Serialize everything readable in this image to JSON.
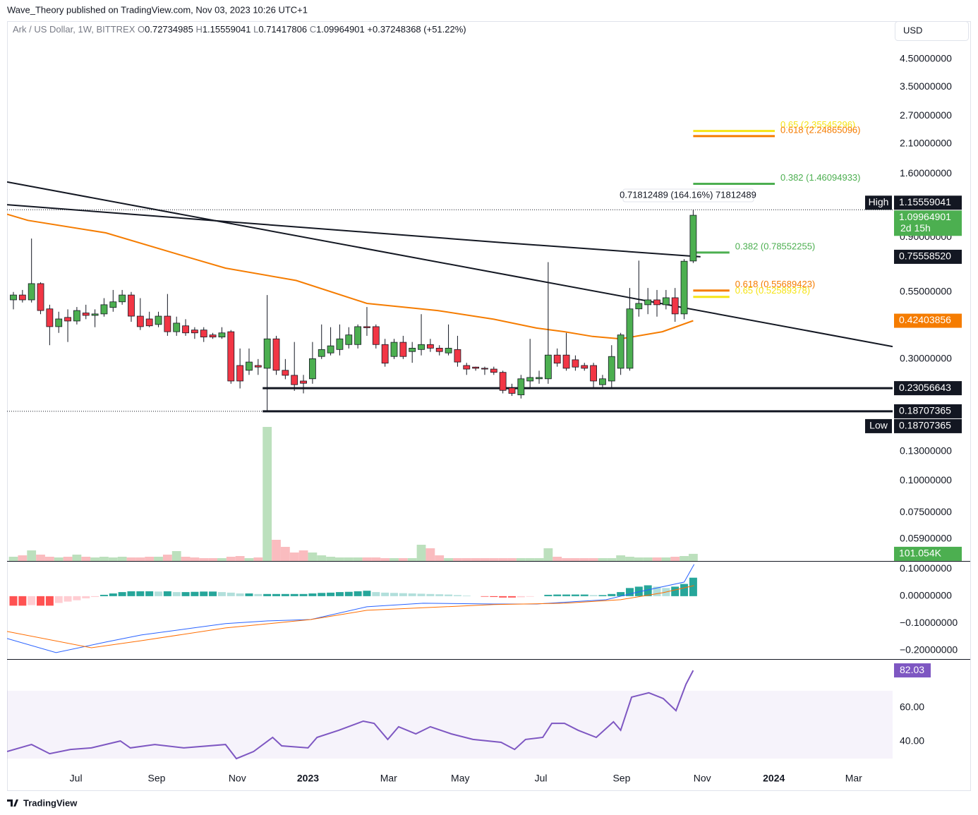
{
  "header": {
    "publisher": "Wave_Theory published on TradingView.com, Nov 03, 2023 10:26 UTC+1",
    "symbol": "Ark / US Dollar, 1W, BITTREX",
    "ohlc_keys": [
      "O",
      "H",
      "L",
      "C"
    ],
    "change": "+0.37248368 (+51.22%)",
    "currency": "USD",
    "measure": "0.71812489 (164.16%) 71812489"
  },
  "footer": {
    "brand": "TradingView"
  },
  "chart_data": [
    {
      "type": "candlestick",
      "log_scale": true,
      "ylim": [
        0.0484,
        6.35
      ],
      "xlim": [
        -0.7,
        97
      ],
      "up_color": "#4caf50",
      "down_color": "#f23645",
      "wick_color": "#131722",
      "yticks": [
        {
          "value": 4.5,
          "label": "4.50000000"
        },
        {
          "value": 3.5,
          "label": "3.50000000"
        },
        {
          "value": 2.7,
          "label": "2.70000000"
        },
        {
          "value": 2.1,
          "label": "2.10000000"
        },
        {
          "value": 1.6,
          "label": "1.60000000"
        },
        {
          "value": 0.9,
          "label": "0.90000000"
        },
        {
          "value": 0.55,
          "label": "0.55000000"
        },
        {
          "value": 0.3,
          "label": "0.30000000"
        },
        {
          "value": 0.13,
          "label": "0.13000000"
        },
        {
          "value": 0.1,
          "label": "0.10000000"
        },
        {
          "value": 0.075,
          "label": "0.07500000"
        },
        {
          "value": 0.059,
          "label": "0.05900000"
        }
      ],
      "xticks": [
        {
          "value": 6.9,
          "label": "Jul"
        },
        {
          "value": 15.8,
          "label": "Sep"
        },
        {
          "value": 24.7,
          "label": "Nov"
        },
        {
          "value": 32.5,
          "label": "2023"
        },
        {
          "value": 41.4,
          "label": "Mar"
        },
        {
          "value": 49.3,
          "label": "May"
        },
        {
          "value": 58.2,
          "label": "Jul"
        },
        {
          "value": 67.1,
          "label": "Sep"
        },
        {
          "value": 76,
          "label": "Nov"
        },
        {
          "value": 83.9,
          "label": "2024"
        },
        {
          "value": 92.7,
          "label": "Mar"
        }
      ],
      "ohlc": [
        [
          0.512,
          0.55,
          0.47,
          0.535
        ],
        [
          0.535,
          0.56,
          0.5,
          0.512
        ],
        [
          0.512,
          0.891,
          0.5,
          0.593
        ],
        [
          0.593,
          0.6,
          0.45,
          0.465
        ],
        [
          0.472,
          0.49,
          0.34,
          0.402
        ],
        [
          0.402,
          0.46,
          0.38,
          0.431
        ],
        [
          0.437,
          0.47,
          0.35,
          0.423
        ],
        [
          0.423,
          0.48,
          0.41,
          0.465
        ],
        [
          0.455,
          0.49,
          0.43,
          0.445
        ],
        [
          0.445,
          0.47,
          0.4,
          0.451
        ],
        [
          0.451,
          0.52,
          0.44,
          0.49
        ],
        [
          0.478,
          0.56,
          0.46,
          0.503
        ],
        [
          0.503,
          0.56,
          0.49,
          0.535
        ],
        [
          0.535,
          0.55,
          0.42,
          0.442
        ],
        [
          0.442,
          0.52,
          0.39,
          0.402
        ],
        [
          0.431,
          0.46,
          0.4,
          0.405
        ],
        [
          0.41,
          0.46,
          0.4,
          0.442
        ],
        [
          0.442,
          0.54,
          0.37,
          0.384
        ],
        [
          0.384,
          0.44,
          0.37,
          0.415
        ],
        [
          0.405,
          0.43,
          0.37,
          0.38
        ],
        [
          0.39,
          0.4,
          0.36,
          0.38
        ],
        [
          0.39,
          0.4,
          0.35,
          0.366
        ],
        [
          0.373,
          0.38,
          0.36,
          0.366
        ],
        [
          0.366,
          0.4,
          0.36,
          0.38
        ],
        [
          0.384,
          0.39,
          0.24,
          0.246
        ],
        [
          0.283,
          0.33,
          0.23,
          0.246
        ],
        [
          0.271,
          0.33,
          0.26,
          0.292
        ],
        [
          0.283,
          0.3,
          0.26,
          0.279
        ],
        [
          0.276,
          0.535,
          0.18707365,
          0.36
        ],
        [
          0.36,
          0.37,
          0.26,
          0.271
        ],
        [
          0.271,
          0.3,
          0.25,
          0.259
        ],
        [
          0.259,
          0.35,
          0.225,
          0.238
        ],
        [
          0.246,
          0.26,
          0.22,
          0.241
        ],
        [
          0.251,
          0.35,
          0.24,
          0.301
        ],
        [
          0.307,
          0.41,
          0.3,
          0.327
        ],
        [
          0.317,
          0.4,
          0.31,
          0.338
        ],
        [
          0.327,
          0.41,
          0.31,
          0.36
        ],
        [
          0.342,
          0.4,
          0.33,
          0.373
        ],
        [
          0.342,
          0.41,
          0.33,
          0.402
        ],
        [
          0.402,
          0.48,
          0.37,
          0.398
        ],
        [
          0.402,
          0.41,
          0.33,
          0.342
        ],
        [
          0.342,
          0.36,
          0.28,
          0.289
        ],
        [
          0.307,
          0.36,
          0.3,
          0.349
        ],
        [
          0.349,
          0.37,
          0.3,
          0.307
        ],
        [
          0.321,
          0.35,
          0.29,
          0.331
        ],
        [
          0.327,
          0.45,
          0.31,
          0.342
        ],
        [
          0.342,
          0.36,
          0.32,
          0.331
        ],
        [
          0.331,
          0.34,
          0.31,
          0.321
        ],
        [
          0.317,
          0.41,
          0.31,
          0.331
        ],
        [
          0.327,
          0.37,
          0.28,
          0.292
        ],
        [
          0.283,
          0.29,
          0.26,
          0.274
        ],
        [
          0.279,
          0.28,
          0.27,
          0.276
        ],
        [
          0.276,
          0.28,
          0.26,
          0.274
        ],
        [
          0.274,
          0.28,
          0.26,
          0.266
        ],
        [
          0.266,
          0.27,
          0.22,
          0.226
        ],
        [
          0.231,
          0.24,
          0.215,
          0.22
        ],
        [
          0.217,
          0.26,
          0.21,
          0.251
        ],
        [
          0.246,
          0.36,
          0.23,
          0.254
        ],
        [
          0.251,
          0.27,
          0.24,
          0.254
        ],
        [
          0.251,
          0.72,
          0.24,
          0.311
        ],
        [
          0.311,
          0.33,
          0.28,
          0.289
        ],
        [
          0.311,
          0.38,
          0.27,
          0.276
        ],
        [
          0.298,
          0.31,
          0.27,
          0.279
        ],
        [
          0.283,
          0.29,
          0.27,
          0.276
        ],
        [
          0.283,
          0.29,
          0.23,
          0.246
        ],
        [
          0.238,
          0.26,
          0.23,
          0.251
        ],
        [
          0.246,
          0.34,
          0.23,
          0.307
        ],
        [
          0.276,
          0.38,
          0.26,
          0.373
        ],
        [
          0.276,
          0.57,
          0.27,
          0.472
        ],
        [
          0.472,
          0.73,
          0.44,
          0.496
        ],
        [
          0.49,
          0.57,
          0.45,
          0.512
        ],
        [
          0.512,
          0.56,
          0.44,
          0.49
        ],
        [
          0.49,
          0.56,
          0.47,
          0.522
        ],
        [
          0.522,
          0.57,
          0.42,
          0.451
        ],
        [
          0.451,
          0.74,
          0.43,
          0.726
        ],
        [
          0.72734985,
          1.15559041,
          0.71417806,
          1.09964901
        ]
      ],
      "volume": {
        "up_color": "#a5d6a7",
        "down_color": "#f8a5a9",
        "last_label": "101.054K",
        "values": [
          60000,
          80000,
          150000,
          90000,
          60000,
          50000,
          60000,
          90000,
          60000,
          50000,
          60000,
          50000,
          60000,
          50000,
          50000,
          60000,
          60000,
          90000,
          140000,
          60000,
          50000,
          40000,
          40000,
          40000,
          60000,
          70000,
          40000,
          50000,
          1900000,
          300000,
          200000,
          120000,
          150000,
          120000,
          80000,
          60000,
          50000,
          50000,
          50000,
          50000,
          50000,
          40000,
          40000,
          40000,
          40000,
          230000,
          180000,
          80000,
          40000,
          40000,
          40000,
          40000,
          40000,
          40000,
          40000,
          40000,
          40000,
          40000,
          40000,
          180000,
          60000,
          40000,
          40000,
          40000,
          40000,
          40000,
          40000,
          80000,
          60000,
          50000,
          50000,
          50000,
          50000,
          60000,
          70000,
          101054
        ]
      },
      "ma": {
        "color": "#f57c00",
        "x": [
          -0.7,
          1.6,
          10.2,
          17.98,
          23.4,
          31.2,
          39,
          46.8,
          53,
          57.7,
          60.8,
          63.9,
          67,
          71.6,
          75
        ],
        "values": [
          1.11,
          1.05,
          0.938,
          0.776,
          0.682,
          0.61,
          0.496,
          0.465,
          0.43,
          0.397,
          0.384,
          0.368,
          0.36,
          0.384,
          0.42403856
        ]
      },
      "trendlines": [
        {
          "color": "#131722",
          "x": [
            -0.7,
            97
          ],
          "values": [
            1.485,
            0.336
          ]
        },
        {
          "color": "#131722",
          "x": [
            -0.7,
            22.6,
            53.7,
            75.8
          ],
          "values": [
            1.21,
            1.045,
            0.86,
            0.7555852
          ]
        }
      ],
      "levels": [
        {
          "value": 0.23056643,
          "x": [
            27.5,
            97
          ]
        },
        {
          "value": 0.18707365,
          "x": [
            27.5,
            97
          ]
        }
      ],
      "fib": [
        {
          "label": "0.65 (2.35545296)",
          "value": 2.35545296,
          "color": "#f5e416",
          "x": [
            75,
            84
          ]
        },
        {
          "label": "0.618 (2.24865096)",
          "value": 2.24865096,
          "color": "#f57c00",
          "x": [
            75,
            84
          ]
        },
        {
          "label": "0.382 (1.46094933)",
          "value": 1.46094933,
          "color": "#4caf50",
          "x": [
            75,
            84
          ]
        },
        {
          "label": "0.382 (0.78552255)",
          "value": 0.78552255,
          "color": "#4caf50",
          "x": [
            75,
            79
          ]
        },
        {
          "label": "0.618 (0.55689423)",
          "value": 0.55689423,
          "color": "#f57c00",
          "x": [
            75,
            79
          ]
        },
        {
          "label": "0.65 (0.52589378)",
          "value": 0.52589378,
          "color": "#f5e416",
          "x": [
            75,
            79
          ]
        }
      ],
      "price_labels": [
        {
          "tag": "High",
          "value": 1.15559041,
          "color": "#131722"
        },
        {
          "value": 1.09964901,
          "countdown": "2d 15h",
          "color": "#4caf50"
        },
        {
          "value": 0.7555852,
          "label": "0.75558520",
          "color": "#131722"
        },
        {
          "value": 0.42403856,
          "color": "#f57c00"
        },
        {
          "value": 0.23056643,
          "color": "#131722"
        },
        {
          "value": 0.18707365,
          "color": "#131722"
        },
        {
          "tag": "Low",
          "value": 0.18707365,
          "color": "#131722"
        }
      ]
    },
    {
      "type": "macd",
      "ylim": [
        -0.229,
        0.127
      ],
      "yticks": [
        {
          "value": 0.1,
          "label": "0.10000000"
        },
        {
          "value": 0,
          "label": "0.00000000"
        },
        {
          "value": -0.1,
          "label": "−0.10000000"
        },
        {
          "value": -0.2,
          "label": "−0.20000000"
        }
      ],
      "hist_colors": [
        "#26a69a",
        "#b2dfdb",
        "#ffcdd2",
        "#ff5252"
      ],
      "histogram": [
        -0.035,
        -0.035,
        -0.033,
        -0.035,
        -0.035,
        -0.025,
        -0.02,
        -0.015,
        -0.008,
        -0.003,
        0.005,
        0.01,
        0.015,
        0.018,
        0.018,
        0.018,
        0.017,
        0.018,
        0.015,
        0.015,
        0.016,
        0.017,
        0.017,
        0.015,
        0.013,
        0.01,
        0.01,
        0.008,
        0.008,
        0.008,
        0.008,
        0.008,
        0.008,
        0.01,
        0.012,
        0.013,
        0.015,
        0.016,
        0.018,
        0.02,
        0.015,
        0.013,
        0.012,
        0.011,
        0.01,
        0.009,
        0.008,
        0.007,
        0.006,
        0.004,
        0.002,
        0,
        -0.002,
        -0.003,
        -0.005,
        -0.005,
        -0.004,
        -0.002,
        0,
        0.005,
        0.006,
        0.006,
        0.006,
        0.006,
        0.004,
        0.004,
        0.008,
        0.015,
        0.03,
        0.035,
        0.04,
        0.035,
        0.03,
        0.035,
        0.045,
        0.068
      ],
      "series": [
        {
          "color": "#2962ff",
          "x": [
            -0.7,
            4.7,
            10.2,
            14.1,
            23.4,
            28.1,
            32.8,
            39,
            45.2,
            53,
            57.7,
            65.4,
            68.6,
            74,
            75.1
          ],
          "values": [
            -0.156,
            -0.208,
            -0.169,
            -0.143,
            -0.101,
            -0.091,
            -0.086,
            -0.039,
            -0.026,
            -0.029,
            -0.029,
            -0.013,
            0.013,
            0.052,
            0.117
          ]
        },
        {
          "color": "#ff6d00",
          "x": [
            -0.7,
            8.6,
            14.1,
            23.4,
            32.8,
            39,
            53,
            60.8,
            67,
            71.7,
            75.1
          ],
          "values": [
            -0.13,
            -0.19,
            -0.164,
            -0.117,
            -0.086,
            -0.052,
            -0.031,
            -0.026,
            -0.013,
            0.013,
            0.039
          ]
        }
      ]
    },
    {
      "type": "line",
      "ylim": [
        21.7,
        88.3
      ],
      "band": [
        30,
        70
      ],
      "band_color": "#7e57c2",
      "yticks": [
        {
          "value": 60,
          "label": "60.00"
        },
        {
          "value": 40,
          "label": "40.00"
        }
      ],
      "series": [
        {
          "color": "#7e57c2",
          "x": [
            -0.7,
            2,
            4,
            6.3,
            8.6,
            11.8,
            12.9,
            15.6,
            18.8,
            23.4,
            24.6,
            26.5,
            28.6,
            29.6,
            32.5,
            33.5,
            35.9,
            38.6,
            39.8,
            41.3,
            42.5,
            44.4,
            46,
            48.3,
            50.7,
            53.8,
            55.3,
            56.5,
            58.4,
            59.4,
            60.8,
            62.3,
            64.3,
            66.2,
            67,
            68.2,
            70.1,
            71.7,
            73.1,
            74.2,
            75
          ],
          "values": [
            34.2,
            38.3,
            32.9,
            35.4,
            36.3,
            40.4,
            36.3,
            38.3,
            36.3,
            38.3,
            30.0,
            34.2,
            42.5,
            37.5,
            36.3,
            42.5,
            46.7,
            52.1,
            50.8,
            41.3,
            48.8,
            44.6,
            48.8,
            44.6,
            41.3,
            39.6,
            35.4,
            41.3,
            42.5,
            50.8,
            50.8,
            46.7,
            42.5,
            51.7,
            46.7,
            66.3,
            68.8,
            65.4,
            58.3,
            73.8,
            82.03
          ]
        }
      ]
    }
  ]
}
